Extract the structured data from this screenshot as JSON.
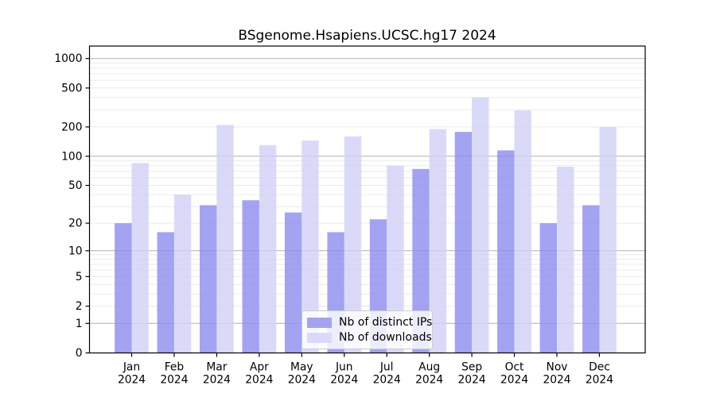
{
  "chart_data": {
    "type": "bar",
    "title": "BSgenome.Hsapiens.UCSC.hg17 2024",
    "categories": [
      "Jan",
      "Feb",
      "Mar",
      "Apr",
      "May",
      "Jun",
      "Jul",
      "Aug",
      "Sep",
      "Oct",
      "Nov",
      "Dec"
    ],
    "category_year": "2024",
    "series": [
      {
        "name": "Nb of distinct IPs",
        "color": "#a3a3f2",
        "values": [
          20,
          16,
          31,
          35,
          26,
          16,
          22,
          74,
          178,
          115,
          20,
          31
        ]
      },
      {
        "name": "Nb of downloads",
        "color": "#dadaf8",
        "values": [
          85,
          40,
          210,
          130,
          145,
          160,
          80,
          190,
          400,
          295,
          78,
          200
        ]
      }
    ],
    "yscale": "log1p",
    "yticks": [
      0,
      1,
      2,
      5,
      10,
      20,
      50,
      100,
      200,
      500,
      1000
    ],
    "ylim": [
      0,
      1340
    ],
    "xlabel": "",
    "ylabel": "",
    "grid": true,
    "legend_position": "bottom-center",
    "colors": {
      "grid_major": "#b0b0b0",
      "grid_minor": "#ebebeb",
      "spine": "#000000",
      "text": "#000000"
    }
  }
}
